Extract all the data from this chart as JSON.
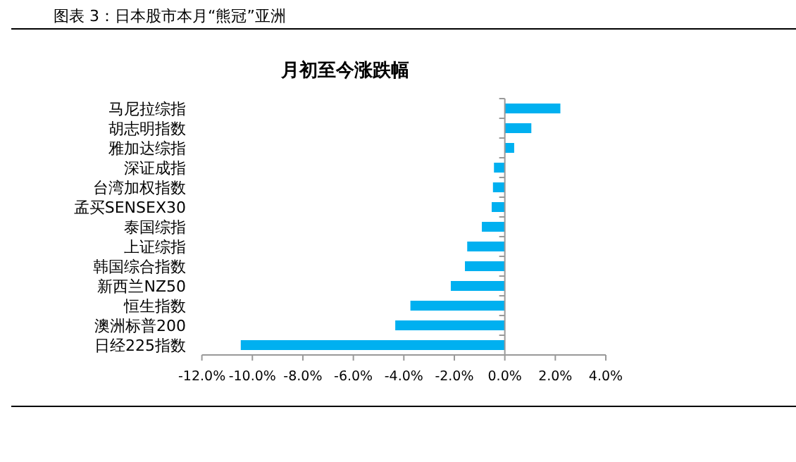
{
  "chart_data": {
    "type": "bar",
    "orientation": "horizontal",
    "title": "月初至今涨跌幅",
    "annotations": [
      "图表 3：日本股市本月“熊冠”亚洲"
    ],
    "categories": [
      "马尼拉综指",
      "胡志明指数",
      "雅加达综指",
      "深证成指",
      "台湾加权指数",
      "孟买SENSEX30",
      "泰国综指",
      "上证综指",
      "韩国综合指数",
      "新西兰NZ50",
      "恒生指数",
      "澳洲标普200",
      "日经225指数"
    ],
    "values": [
      2.2,
      1.05,
      0.37,
      -0.43,
      -0.47,
      -0.52,
      -0.91,
      -1.49,
      -1.58,
      -2.14,
      -3.74,
      -4.34,
      -10.46
    ],
    "color": "#00b0f0",
    "xlim": [
      -12,
      4
    ],
    "xticks": [
      {
        "value": -12,
        "label": "-12.0%"
      },
      {
        "value": -10,
        "label": "-10.0%"
      },
      {
        "value": -8,
        "label": "-8.0%"
      },
      {
        "value": -6,
        "label": "-6.0%"
      },
      {
        "value": -4,
        "label": "-4.0%"
      },
      {
        "value": -2,
        "label": "-2.0%"
      },
      {
        "value": 0,
        "label": "0.0%"
      },
      {
        "value": 2,
        "label": "2.0%"
      },
      {
        "value": 4,
        "label": "4.0%"
      }
    ],
    "tick_labels": "xy"
  }
}
